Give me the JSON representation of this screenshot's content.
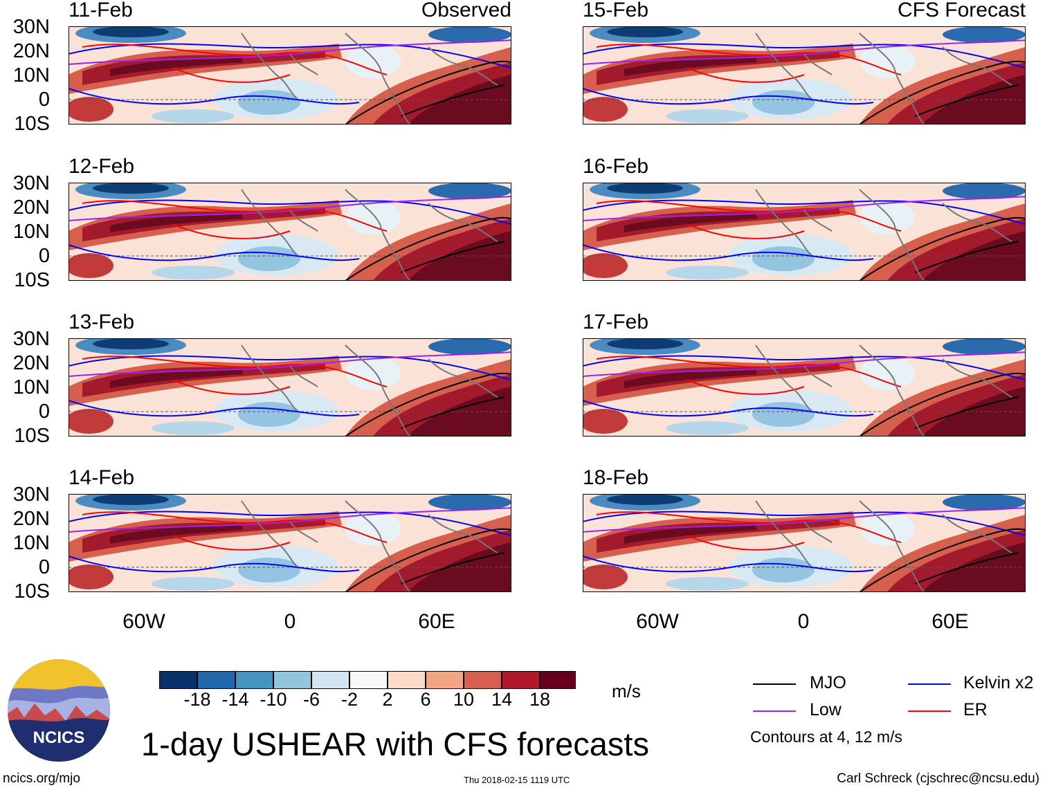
{
  "panels": [
    {
      "date": "11-Feb",
      "title": "Observed"
    },
    {
      "date": "12-Feb",
      "title": ""
    },
    {
      "date": "13-Feb",
      "title": ""
    },
    {
      "date": "14-Feb",
      "title": ""
    },
    {
      "date": "15-Feb",
      "title": "CFS Forecast"
    },
    {
      "date": "16-Feb",
      "title": ""
    },
    {
      "date": "17-Feb",
      "title": ""
    },
    {
      "date": "18-Feb",
      "title": ""
    }
  ],
  "y_axis_labels": [
    "30N",
    "20N",
    "10N",
    "0",
    "10S"
  ],
  "x_axis_labels": [
    "60W",
    "0",
    "60E"
  ],
  "colorbar": {
    "colors": [
      "#08306b",
      "#2166ac",
      "#4393c3",
      "#92c5de",
      "#d1e5f0",
      "#f7f7f7",
      "#fddbc7",
      "#f4a582",
      "#d6604d",
      "#b2182b",
      "#67001f"
    ],
    "labels": [
      "-18",
      "-14",
      "-10",
      "-6",
      "-2",
      "2",
      "6",
      "10",
      "14",
      "18"
    ],
    "units": "m/s"
  },
  "legend": {
    "items": [
      {
        "label": "MJO",
        "color": "#000000"
      },
      {
        "label": "Kelvin x2",
        "color": "#0000ff"
      },
      {
        "label": "Low",
        "color": "#a020f0"
      },
      {
        "label": "ER",
        "color": "#ff0000"
      }
    ],
    "note": "Contours at 4, 12 m/s"
  },
  "logo_text": "NCICS",
  "main_title": "1-day USHEAR with CFS forecasts",
  "footer": {
    "left": "ncics.org/mjo",
    "center": "Thu 2018-02-15 1119 UTC",
    "right": "Carl Schreck (cjschrec@ncsu.edu)"
  }
}
